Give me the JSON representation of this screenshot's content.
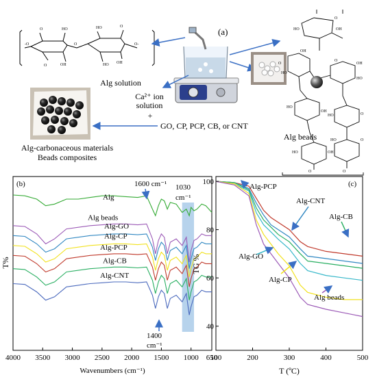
{
  "panel_a": {
    "label": "(a)",
    "alg_solution": "Alg solution",
    "ca_ion_line1": "Ca²⁺ ion",
    "ca_ion_line2": "solution",
    "plus": "+",
    "additives": "GO, CP, PCP, CB, or CNT",
    "composite_line1": "Alg-carbonaceous materials",
    "composite_line2": "Beads composites",
    "alg_beads": "Alg beads",
    "structure_labels": [
      "OH",
      "HO",
      "O",
      "O",
      "OH",
      "O",
      "HO",
      "O",
      "O",
      "HO",
      "O",
      "OH",
      "HO",
      "HO",
      "OH",
      "O",
      "O",
      "HO",
      "O",
      "OH"
    ],
    "colors": {
      "arrow": "#3a6fc4",
      "bead": "#1b1b1b",
      "beaker": "#b8cde0"
    }
  },
  "chart_data": [
    {
      "type": "line",
      "panel": "(b)",
      "xlabel": "Wavenumbers (cm⁻¹)",
      "ylabel": "T%",
      "xlim": [
        4000,
        650
      ],
      "x_reversed": true,
      "x_ticks": [
        4000,
        3500,
        3000,
        2500,
        2000,
        1500,
        1000,
        650
      ],
      "x_tick_labels": [
        "4000",
        "3500",
        "3000",
        "2500",
        "2000",
        "1500",
        "1000",
        "650"
      ],
      "annotations": [
        "1600 cm⁻¹",
        "1030",
        "cm⁻¹",
        "1400",
        "cm⁻¹"
      ],
      "highlight_band": [
        1150,
        950
      ],
      "x": [
        4000,
        3800,
        3600,
        3450,
        3300,
        3100,
        2900,
        2700,
        2500,
        2300,
        2100,
        1900,
        1750,
        1650,
        1600,
        1550,
        1500,
        1450,
        1400,
        1350,
        1250,
        1150,
        1080,
        1030,
        1000,
        950,
        900,
        820,
        750,
        650
      ],
      "series": [
        {
          "name": "Alg",
          "color": "#33aa33",
          "values": [
            90.5,
            90,
            88,
            84,
            85,
            88,
            88,
            89,
            90,
            90,
            89.5,
            89,
            90,
            82,
            78,
            84,
            88,
            87,
            82,
            86,
            85,
            80,
            82,
            78,
            83,
            81,
            82,
            85,
            84,
            80
          ]
        },
        {
          "name": "Alg beads",
          "color": "#9b59b6",
          "values": [
            72,
            71.5,
            67,
            61,
            64,
            70,
            71,
            72,
            72.5,
            73,
            73,
            72.5,
            73,
            64,
            55,
            63,
            67,
            65,
            55,
            62,
            64,
            60,
            65,
            50,
            57,
            63,
            64,
            67,
            66,
            66
          ]
        },
        {
          "name": "Alg-GO",
          "color": "#2e86c1",
          "values": [
            66,
            65.5,
            61,
            56,
            58,
            64,
            65,
            66,
            66.5,
            67,
            67,
            66.5,
            67,
            59,
            51,
            58,
            62,
            60,
            51,
            57,
            59,
            55,
            60,
            46,
            52,
            58,
            59,
            62,
            61,
            61
          ]
        },
        {
          "name": "Alg-CP",
          "color": "#f1e11b",
          "values": [
            60,
            59.5,
            55,
            50,
            52,
            58,
            59,
            60,
            60.5,
            61,
            61,
            60.5,
            61,
            53,
            45,
            52,
            56,
            54,
            45,
            51,
            53,
            49,
            54,
            41,
            46,
            52,
            53,
            56,
            55,
            55
          ]
        },
        {
          "name": "Alg-PCP",
          "color": "#c0392b",
          "values": [
            54,
            53.5,
            49,
            44,
            46,
            52,
            53,
            54,
            54.5,
            55,
            55,
            54.5,
            55,
            47,
            39,
            46,
            50,
            48,
            39,
            45,
            47,
            43,
            48,
            35,
            40,
            46,
            47,
            50,
            49,
            49
          ]
        },
        {
          "name": "Alg-CB",
          "color": "#27ae60",
          "values": [
            46,
            45.5,
            41,
            36,
            38,
            44,
            45,
            46,
            46.5,
            47,
            47,
            46.5,
            47,
            39,
            31,
            38,
            42,
            40,
            31,
            37,
            39,
            35,
            40,
            27,
            32,
            38,
            39,
            42,
            41,
            41
          ]
        },
        {
          "name": "Alg-CNT",
          "color": "#4a69bd",
          "values": [
            37,
            36.5,
            32,
            27,
            29,
            35,
            36,
            37,
            37.5,
            38,
            38,
            37.5,
            38,
            30,
            22,
            29,
            33,
            31,
            22,
            28,
            30,
            26,
            31,
            18,
            23,
            29,
            30,
            33,
            32,
            32
          ]
        }
      ]
    },
    {
      "type": "line",
      "panel": "(c)",
      "xlabel": "T (ºC)",
      "ylabel": "TG %",
      "xlim": [
        100,
        500
      ],
      "ylim": [
        0,
        100
      ],
      "x_ticks": [
        100,
        200,
        300,
        400,
        500
      ],
      "y_ticks": [
        0,
        20,
        40,
        60,
        80,
        100
      ],
      "x": [
        100,
        150,
        190,
        210,
        230,
        250,
        270,
        300,
        330,
        350,
        400,
        450,
        500
      ],
      "series": [
        {
          "name": "Alg-PCP",
          "color": "#c0392b",
          "values": [
            100,
            99.5,
            98,
            93,
            88,
            85,
            83,
            80,
            75,
            73,
            71,
            70,
            69
          ]
        },
        {
          "name": "Alg-CNT",
          "color": "#2e86c1",
          "values": [
            100,
            99.5,
            97,
            91,
            86,
            82,
            80,
            77,
            72,
            69,
            68,
            67,
            66
          ]
        },
        {
          "name": "Alg-CB",
          "color": "#27ae60",
          "values": [
            100,
            99.5,
            96.5,
            89,
            84,
            81,
            78,
            75,
            70,
            67,
            66,
            65,
            64
          ]
        },
        {
          "name": "Alg-GO",
          "color": "#36b7c9",
          "values": [
            100,
            99,
            96,
            87,
            82,
            79,
            76,
            72,
            66,
            63,
            61,
            60,
            59
          ]
        },
        {
          "name": "Alg-CP",
          "color": "#f1e11b",
          "values": [
            100,
            99,
            95,
            84,
            78,
            74,
            70,
            65,
            57,
            54,
            52,
            51,
            51
          ]
        },
        {
          "name": "Alg beads",
          "color": "#9b59b6",
          "values": [
            100,
            98.5,
            94,
            82,
            74,
            70,
            66,
            60,
            52,
            49,
            47,
            45.5,
            44
          ]
        }
      ]
    }
  ]
}
